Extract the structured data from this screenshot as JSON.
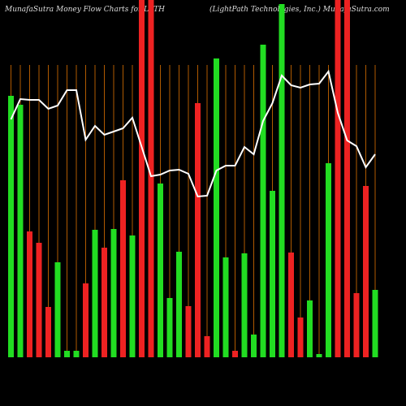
{
  "chart_data": {
    "type": "bar-line",
    "title": "MunafaSutra  Money Flow  Charts for LPTH",
    "subtitle": "(LightPath Technologies, Inc.) MunafaSutra.com",
    "background": "#000000",
    "grid_color": "#b05a00",
    "line_color": "#ffffff",
    "ylim": [
      0,
      440
    ],
    "categories": [
      null,
      null,
      null,
      null,
      null,
      null,
      null,
      null,
      null,
      null,
      null,
      null,
      null,
      null,
      null,
      null,
      null,
      null,
      null,
      null,
      null,
      null,
      null,
      null,
      null,
      null,
      null,
      null,
      null,
      null,
      null,
      null,
      null,
      null,
      null,
      null,
      null,
      null,
      null,
      null
    ],
    "values": [
      322,
      311,
      155,
      141,
      62,
      117,
      8,
      8,
      91,
      157,
      135,
      158,
      218,
      150,
      440,
      440,
      214,
      73,
      130,
      63,
      313,
      26,
      368,
      123,
      8,
      128,
      28,
      385,
      205,
      435,
      129,
      49,
      70,
      4,
      239,
      440,
      440,
      79,
      211,
      83
    ],
    "colors": [
      "#22dd22",
      "#22dd22",
      "#ee2222",
      "#ee2222",
      "#ee2222",
      "#22dd22",
      "#22dd22",
      "#22dd22",
      "#ee2222",
      "#22dd22",
      "#ee2222",
      "#22dd22",
      "#ee2222",
      "#22dd22",
      "#ee2222",
      "#ee2222",
      "#22dd22",
      "#22dd22",
      "#22dd22",
      "#ee2222",
      "#ee2222",
      "#ee2222",
      "#22dd22",
      "#22dd22",
      "#ee2222",
      "#22dd22",
      "#22dd22",
      "#22dd22",
      "#22dd22",
      "#22dd22",
      "#ee2222",
      "#ee2222",
      "#22dd22",
      "#22dd22",
      "#22dd22",
      "#ee2222",
      "#ee2222",
      "#ee2222",
      "#ee2222",
      "#22dd22"
    ],
    "line_values": [
      293,
      318,
      317,
      317,
      306,
      310,
      329,
      329,
      268,
      285,
      274,
      278,
      282,
      295,
      259,
      223,
      225,
      230,
      231,
      226,
      198,
      199,
      230,
      236,
      236,
      259,
      250,
      291,
      313,
      347,
      335,
      332,
      336,
      337,
      352,
      301,
      267,
      260,
      234,
      250
    ]
  }
}
